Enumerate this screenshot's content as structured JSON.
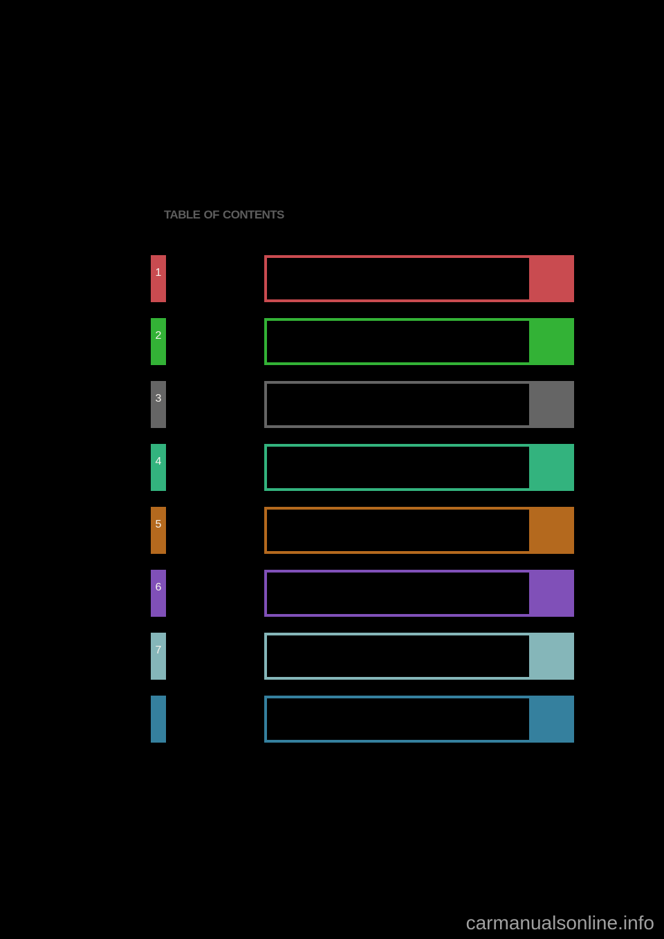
{
  "page": {
    "title": "TABLE OF CONTENTS",
    "background": "#000000",
    "title_color": "#5d5d5d"
  },
  "toc": {
    "sections": [
      {
        "number": "1",
        "color": "#c94b50"
      },
      {
        "number": "2",
        "color": "#33b236"
      },
      {
        "number": "3",
        "color": "#656565"
      },
      {
        "number": "4",
        "color": "#33b37e"
      },
      {
        "number": "5",
        "color": "#b4691e"
      },
      {
        "number": "6",
        "color": "#8050b8"
      },
      {
        "number": "7",
        "color": "#85b6b9"
      },
      {
        "number": "",
        "color": "#35809e"
      }
    ]
  },
  "watermark": {
    "text": "carmanualsonline.info",
    "color": "#a0a0a0"
  }
}
